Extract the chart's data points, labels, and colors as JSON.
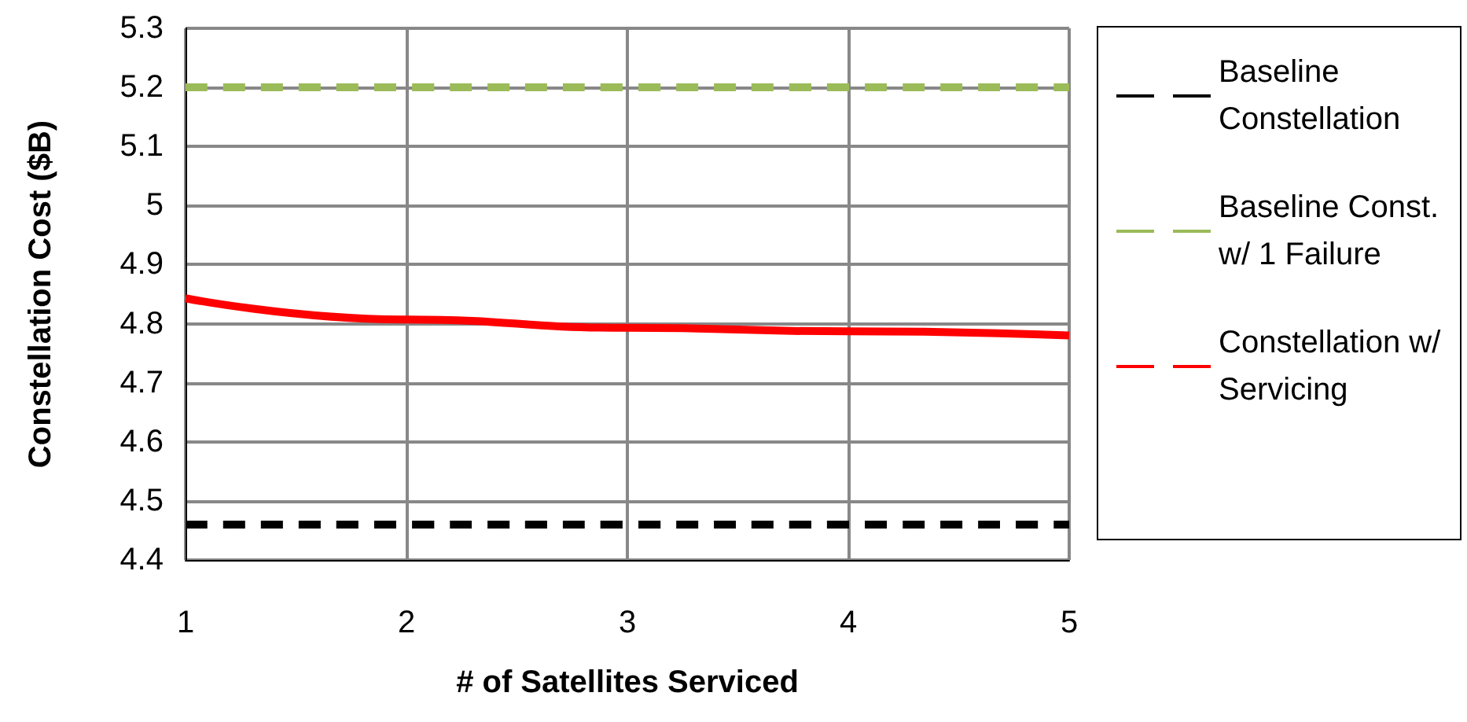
{
  "chart_data": {
    "type": "line",
    "xlabel": "# of Satellites Serviced",
    "ylabel": "Constellation Cost ($B)",
    "x": [
      1,
      2,
      3,
      4,
      5
    ],
    "xlim": [
      1,
      5
    ],
    "xticks": [
      1,
      2,
      3,
      4,
      5
    ],
    "ylim": [
      4.4,
      5.3
    ],
    "yticks": [
      4.4,
      4.5,
      4.6,
      4.7,
      4.8,
      4.9,
      5,
      5.1,
      5.2,
      5.3
    ],
    "series": [
      {
        "name": "Baseline Constellation",
        "color": "#000000",
        "line_style": "dashed",
        "values": [
          4.46,
          4.46,
          4.46,
          4.46,
          4.46
        ]
      },
      {
        "name": "Baseline Const. w/ 1 Failure",
        "color": "#9bbb59",
        "line_style": "dashed",
        "values": [
          5.2,
          5.2,
          5.2,
          5.2,
          5.2
        ]
      },
      {
        "name": "Constellation w/ Servicing",
        "color": "#ff0000",
        "line_style": "solid",
        "values": [
          4.843,
          4.807,
          4.793,
          4.787,
          4.78
        ]
      }
    ],
    "grid": true,
    "legend": "right",
    "marker": "none"
  }
}
